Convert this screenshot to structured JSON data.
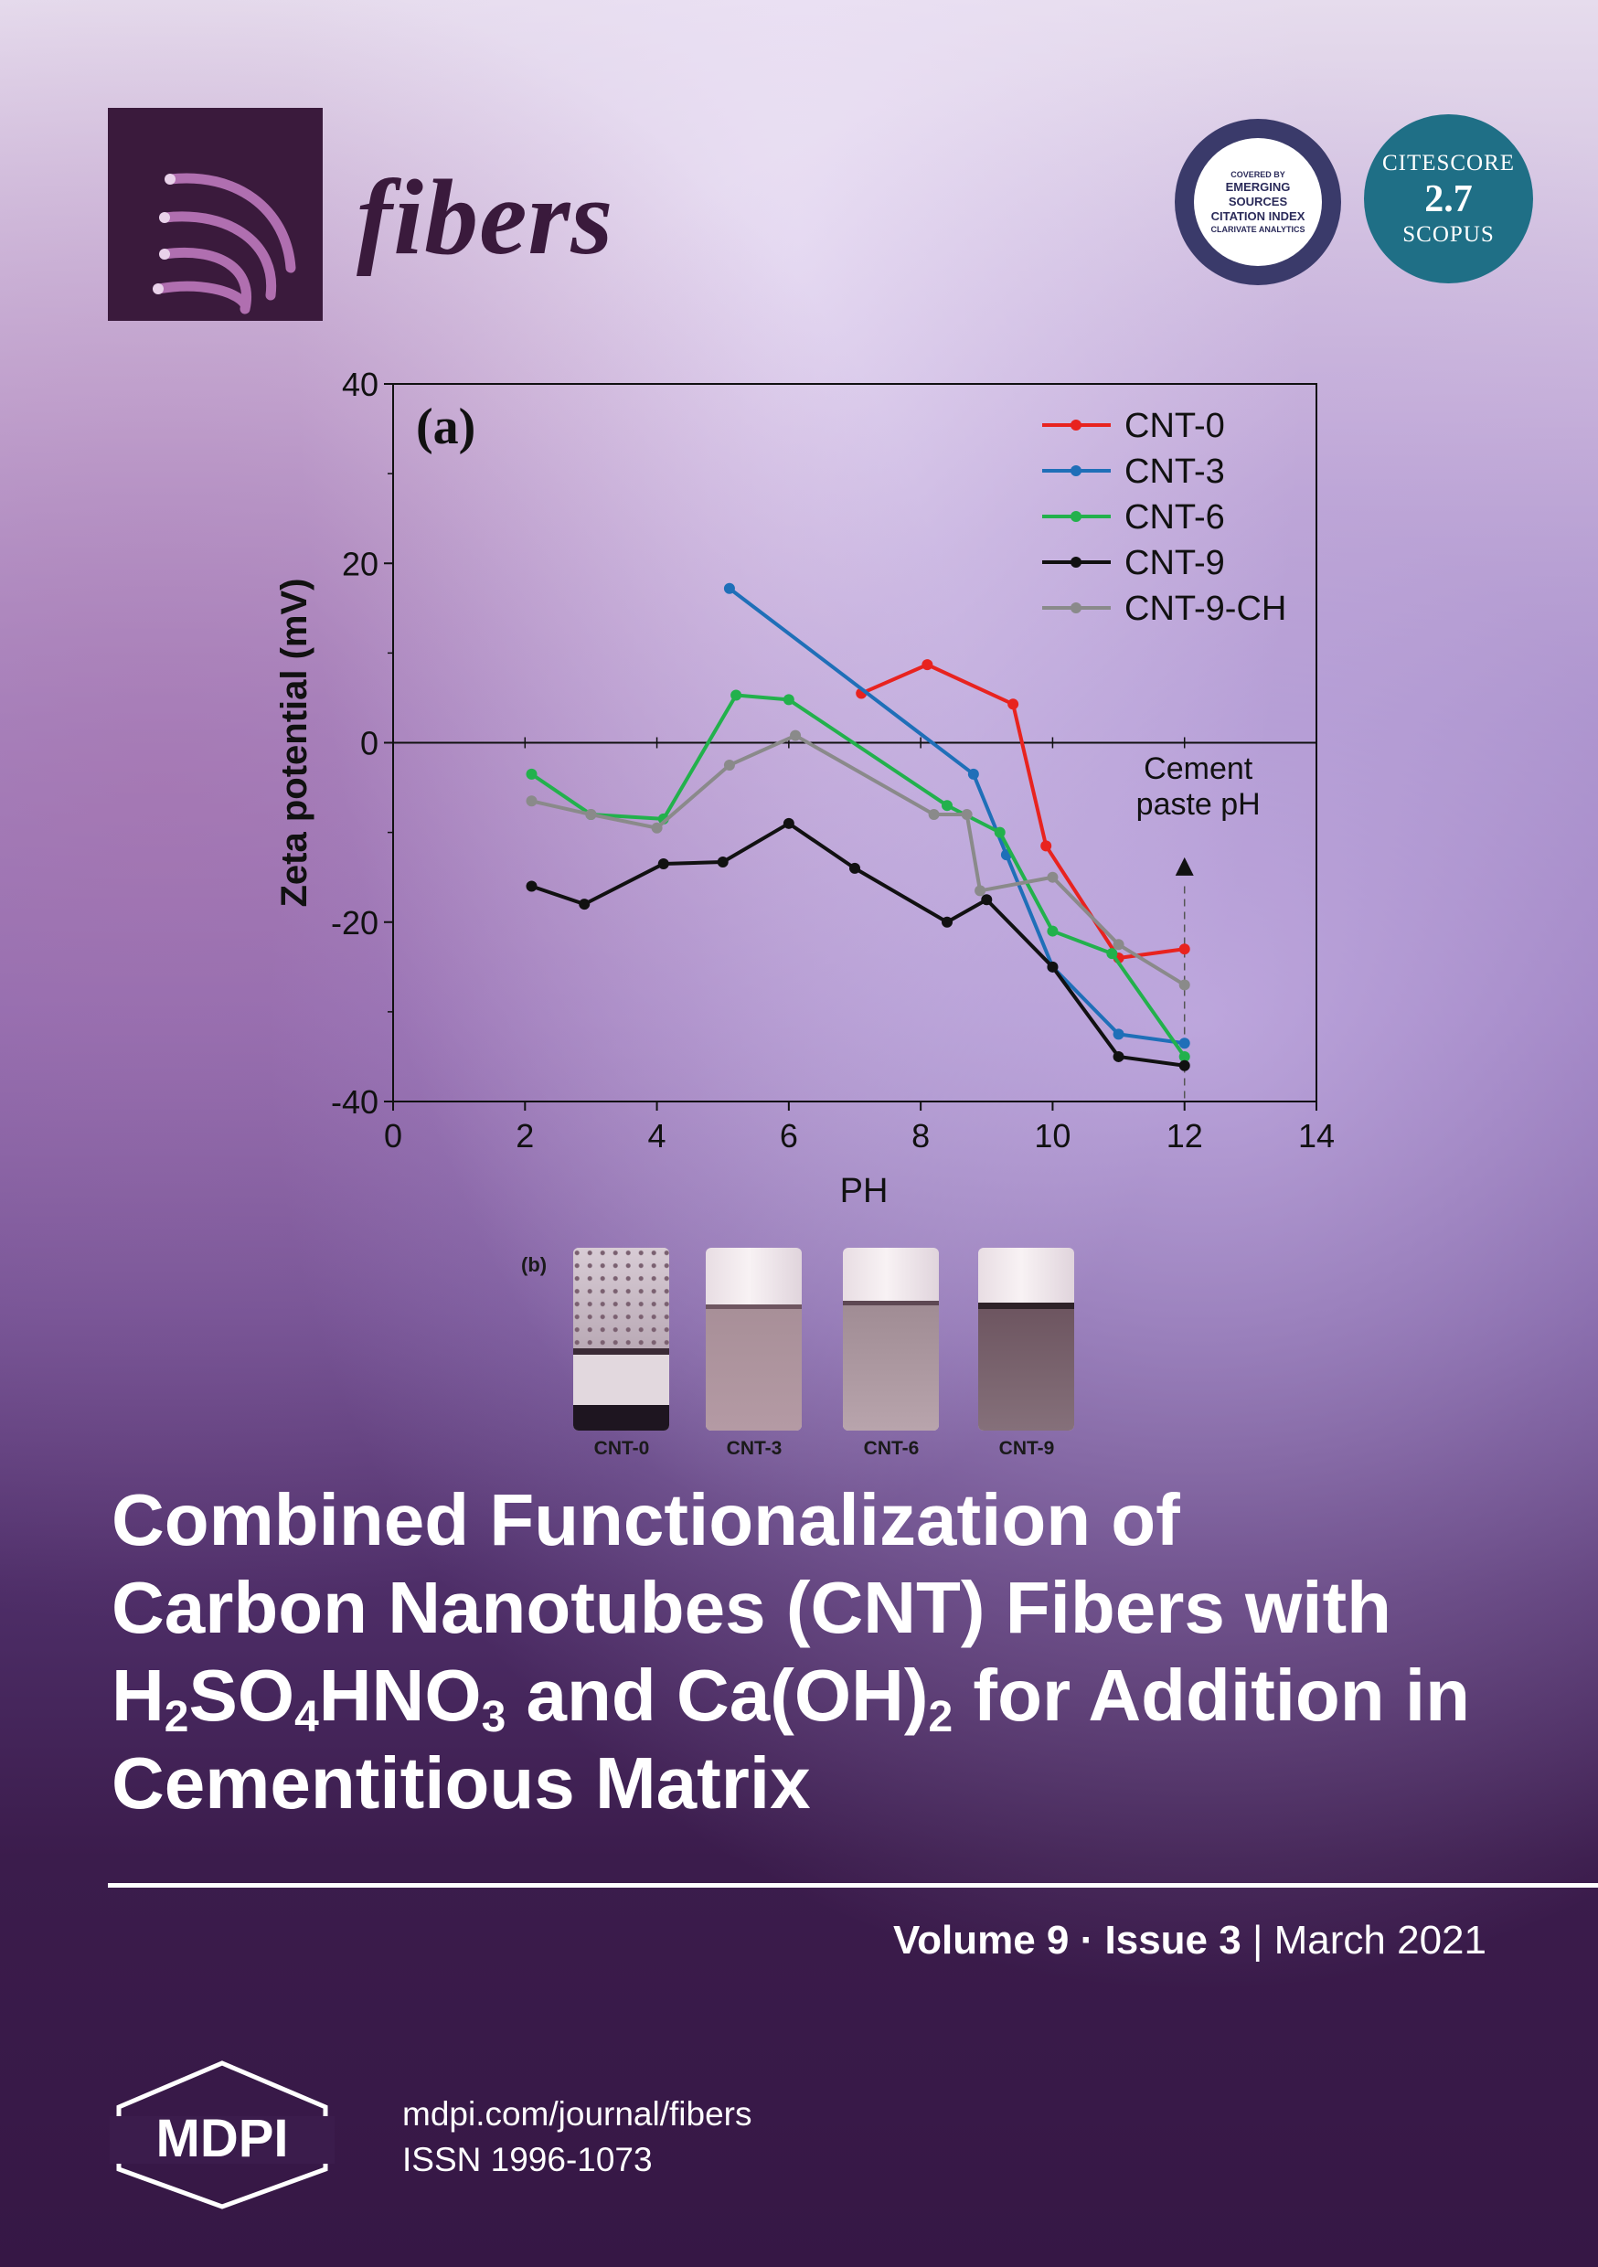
{
  "journal": {
    "name": "fibers"
  },
  "badges": {
    "esci": {
      "covered_by": "COVERED BY",
      "line1": "EMERGING",
      "line2": "SOURCES",
      "line3": "CITATION INDEX",
      "footer": "CLARIVATE ANALYTICS"
    },
    "citescore": {
      "label": "CITESCORE",
      "value": "2.7",
      "source": "SCOPUS"
    }
  },
  "figure": {
    "panel_a_label": "(a)",
    "panel_b_label": "(b)",
    "annotation": [
      "Cement",
      "paste pH"
    ],
    "vials": [
      {
        "label": "CNT-0"
      },
      {
        "label": "CNT-3"
      },
      {
        "label": "CNT-6"
      },
      {
        "label": "CNT-9"
      }
    ]
  },
  "chart_data": {
    "type": "line",
    "title": "",
    "xlabel": "PH",
    "ylabel": "Zeta potential (mV)",
    "xlim": [
      0,
      14
    ],
    "ylim": [
      -40,
      40
    ],
    "x_ticks": [
      "0",
      "2",
      "4",
      "6",
      "8",
      "10",
      "12",
      "14"
    ],
    "y_ticks": [
      "40",
      "20",
      "0",
      "-20",
      "-40"
    ],
    "legend": "top-right",
    "series": [
      {
        "name": "CNT-0",
        "color": "#e8231f",
        "x": [
          7.1,
          8.1,
          9.4,
          9.9,
          11.0,
          12.0
        ],
        "y": [
          5.5,
          8.7,
          4.3,
          -11.5,
          -24.0,
          -23.0
        ]
      },
      {
        "name": "CNT-3",
        "color": "#1f6fb8",
        "x": [
          5.1,
          8.8,
          9.3,
          10.0,
          11.0,
          12.0
        ],
        "y": [
          17.2,
          -3.5,
          -12.5,
          -25.0,
          -32.5,
          -33.5
        ]
      },
      {
        "name": "CNT-6",
        "color": "#22b14c",
        "x": [
          2.1,
          3.0,
          4.1,
          5.2,
          6.0,
          8.4,
          9.2,
          10.0,
          10.9,
          12.0
        ],
        "y": [
          -3.5,
          -8.0,
          -8.5,
          5.3,
          4.8,
          -7.0,
          -10.0,
          -21.0,
          -23.5,
          -35.0
        ]
      },
      {
        "name": "CNT-9",
        "color": "#111111",
        "x": [
          2.1,
          2.9,
          4.1,
          5.0,
          6.0,
          7.0,
          8.4,
          9.0,
          10.0,
          11.0,
          12.0
        ],
        "y": [
          -16.0,
          -18.0,
          -13.5,
          -13.3,
          -9.0,
          -14.0,
          -20.0,
          -17.5,
          -25.0,
          -35.0,
          -36.0
        ]
      },
      {
        "name": "CNT-9-CH",
        "color": "#8a8a8a",
        "x": [
          2.1,
          3.0,
          4.0,
          5.1,
          6.1,
          8.2,
          8.7,
          8.9,
          10.0,
          11.0,
          12.0
        ],
        "y": [
          -6.5,
          -8.0,
          -9.5,
          -2.5,
          0.8,
          -8.0,
          -8.0,
          -16.5,
          -15.0,
          -22.5,
          -27.0
        ]
      }
    ]
  },
  "article": {
    "title_line1": "Combined Functionalization of",
    "title_line2": "Carbon Nanotubes (CNT) Fibers with",
    "title_line3": {
      "h": "H",
      "s2": "2",
      "so": "SO",
      "s4": "4",
      "hno": "HNO",
      "s3": "3",
      "mid": " and Ca(OH)",
      "s2b": "2",
      "end": " for Addition in"
    },
    "title_line4": "Cementitious Matrix"
  },
  "issue": {
    "volume": "Volume 9",
    "dot": "·",
    "issue": "Issue 3",
    "sep": "|",
    "date": "March 2021"
  },
  "publisher": {
    "logo_text": "MDPI",
    "url": "mdpi.com/journal/fibers",
    "issn": "ISSN 1996-1073"
  }
}
